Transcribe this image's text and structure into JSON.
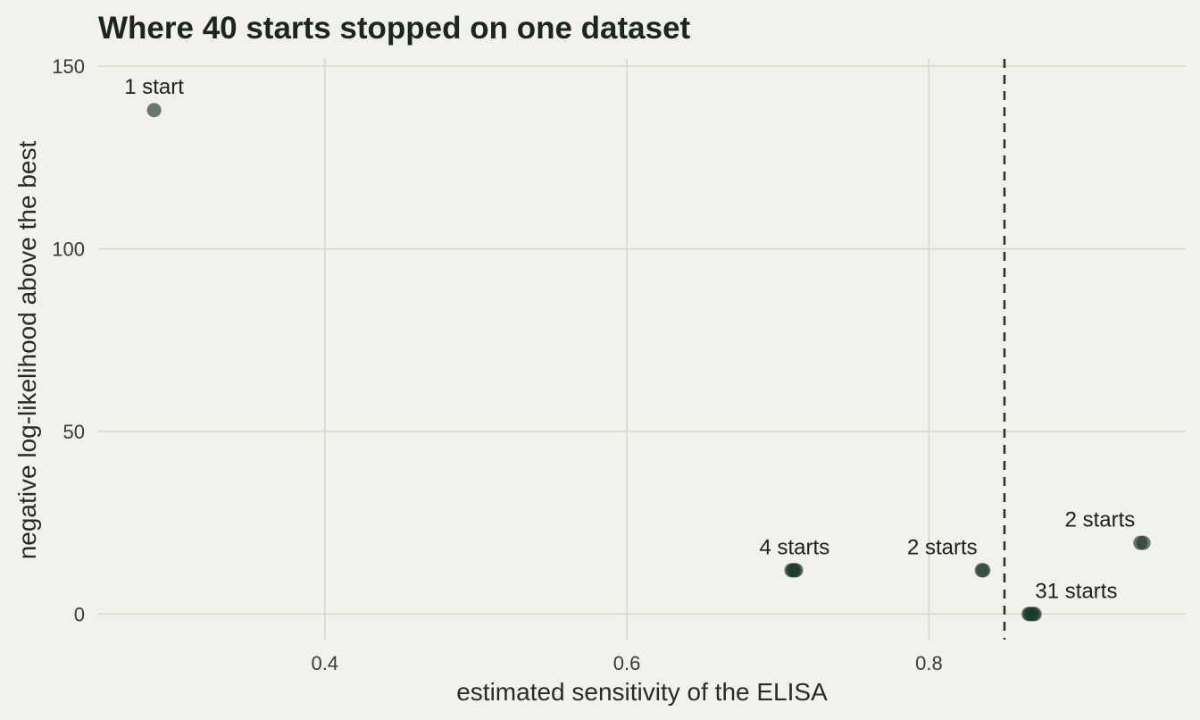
{
  "chart_data": {
    "type": "scatter",
    "title": "Where 40 starts stopped on one dataset",
    "xlabel": "estimated sensitivity of the ELISA",
    "ylabel": "negative log-likelihood above the best",
    "xlim": [
      0.25,
      0.97
    ],
    "ylim": [
      -7,
      152
    ],
    "x_ticks": [
      0.4,
      0.6,
      0.8
    ],
    "x_tick_labels": [
      "0.4",
      "0.6",
      "0.8"
    ],
    "y_ticks": [
      0,
      50,
      100,
      150
    ],
    "y_tick_labels": [
      "0",
      "50",
      "100",
      "150"
    ],
    "grid": true,
    "reference_line": {
      "x": 0.85,
      "style": "dashed"
    },
    "point_color": "#1c3a2a",
    "groups": [
      {
        "label": "1 start",
        "count": 1,
        "x": 0.287,
        "y": 138,
        "points": [
          [
            0.287,
            138
          ]
        ]
      },
      {
        "label": "4 starts",
        "count": 4,
        "x": 0.711,
        "y": 12,
        "points": [
          [
            0.709,
            12
          ],
          [
            0.71,
            12
          ],
          [
            0.711,
            12
          ],
          [
            0.712,
            12
          ]
        ]
      },
      {
        "label": "2 starts",
        "count": 2,
        "x": 0.836,
        "y": 12,
        "points": [
          [
            0.835,
            12
          ],
          [
            0.836,
            12
          ]
        ]
      },
      {
        "label": "2 starts",
        "count": 2,
        "x": 0.941,
        "y": 19.5,
        "points": [
          [
            0.94,
            19.5
          ],
          [
            0.942,
            19.5
          ]
        ]
      },
      {
        "label": "31 starts",
        "count": 31,
        "x": 0.868,
        "y": 0,
        "points": [
          [
            0.866,
            0
          ],
          [
            0.867,
            0
          ],
          [
            0.868,
            0
          ],
          [
            0.869,
            0
          ],
          [
            0.87,
            0
          ]
        ]
      }
    ]
  }
}
